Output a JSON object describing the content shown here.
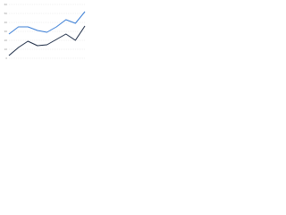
{
  "chart_data": {
    "type": "line",
    "categories": [
      null,
      null,
      null,
      null,
      null,
      null,
      null,
      null,
      null
    ],
    "series": [
      {
        "color": "#3c7fd6",
        "values": [
          27,
          35,
          35,
          31,
          29,
          35,
          43,
          39,
          52
        ]
      },
      {
        "color": "#1b2a44",
        "values": [
          3,
          12,
          19,
          14,
          15,
          21,
          27,
          20,
          36
        ]
      }
    ],
    "ylim": [
      0,
      60
    ],
    "yticks": [
      0,
      10,
      20,
      30,
      40,
      50,
      60
    ],
    "grid": true
  }
}
